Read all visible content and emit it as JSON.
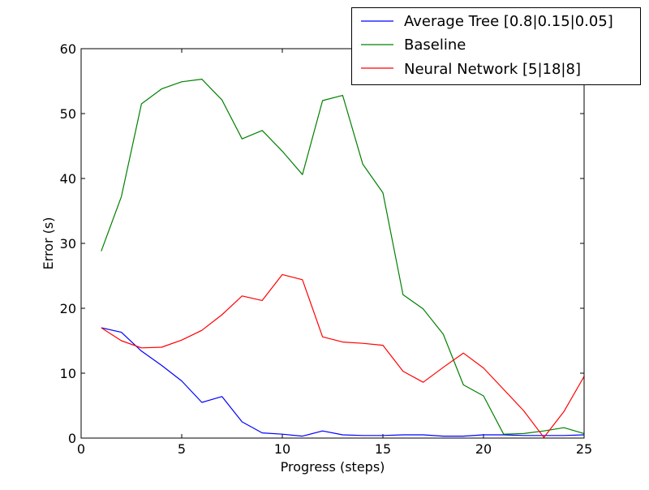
{
  "chart_data": {
    "type": "line",
    "title": "",
    "xlabel": "Progress (steps)",
    "ylabel": "Error (s)",
    "xlim": [
      0,
      25
    ],
    "ylim": [
      0,
      60
    ],
    "xticks": [
      0,
      5,
      10,
      15,
      20,
      25
    ],
    "yticks": [
      0,
      10,
      20,
      30,
      40,
      50,
      60
    ],
    "grid": false,
    "legend_position": "top-right",
    "x": [
      1,
      2,
      3,
      4,
      5,
      6,
      7,
      8,
      9,
      10,
      11,
      12,
      13,
      14,
      15,
      16,
      17,
      18,
      19,
      20,
      21,
      22,
      23,
      24,
      25
    ],
    "series": [
      {
        "name": "Average Tree [0.8|0.15|0.05]",
        "color": "#0000ff",
        "values": [
          17.0,
          16.3,
          13.4,
          11.2,
          8.8,
          5.5,
          6.4,
          2.5,
          0.8,
          0.6,
          0.3,
          1.1,
          0.5,
          0.4,
          0.4,
          0.5,
          0.5,
          0.3,
          0.3,
          0.5,
          0.5,
          0.4,
          0.4,
          0.4,
          0.5
        ]
      },
      {
        "name": "Baseline",
        "color": "#008000",
        "values": [
          28.8,
          37.2,
          51.5,
          53.8,
          54.9,
          55.3,
          52.1,
          46.1,
          47.4,
          44.2,
          40.6,
          52.0,
          52.8,
          42.2,
          37.8,
          22.1,
          19.9,
          16.0,
          8.2,
          6.5,
          0.6,
          0.7,
          1.1,
          1.6,
          0.7
        ]
      },
      {
        "name": "Neural Network [5|18|8]",
        "color": "#ff0000",
        "values": [
          17.0,
          15.0,
          13.9,
          14.0,
          15.1,
          16.6,
          19.0,
          21.9,
          21.2,
          25.2,
          24.4,
          15.6,
          14.8,
          14.6,
          14.3,
          10.3,
          8.6,
          10.9,
          13.1,
          10.8,
          7.5,
          4.2,
          0.1,
          4.1,
          9.5
        ]
      }
    ]
  }
}
